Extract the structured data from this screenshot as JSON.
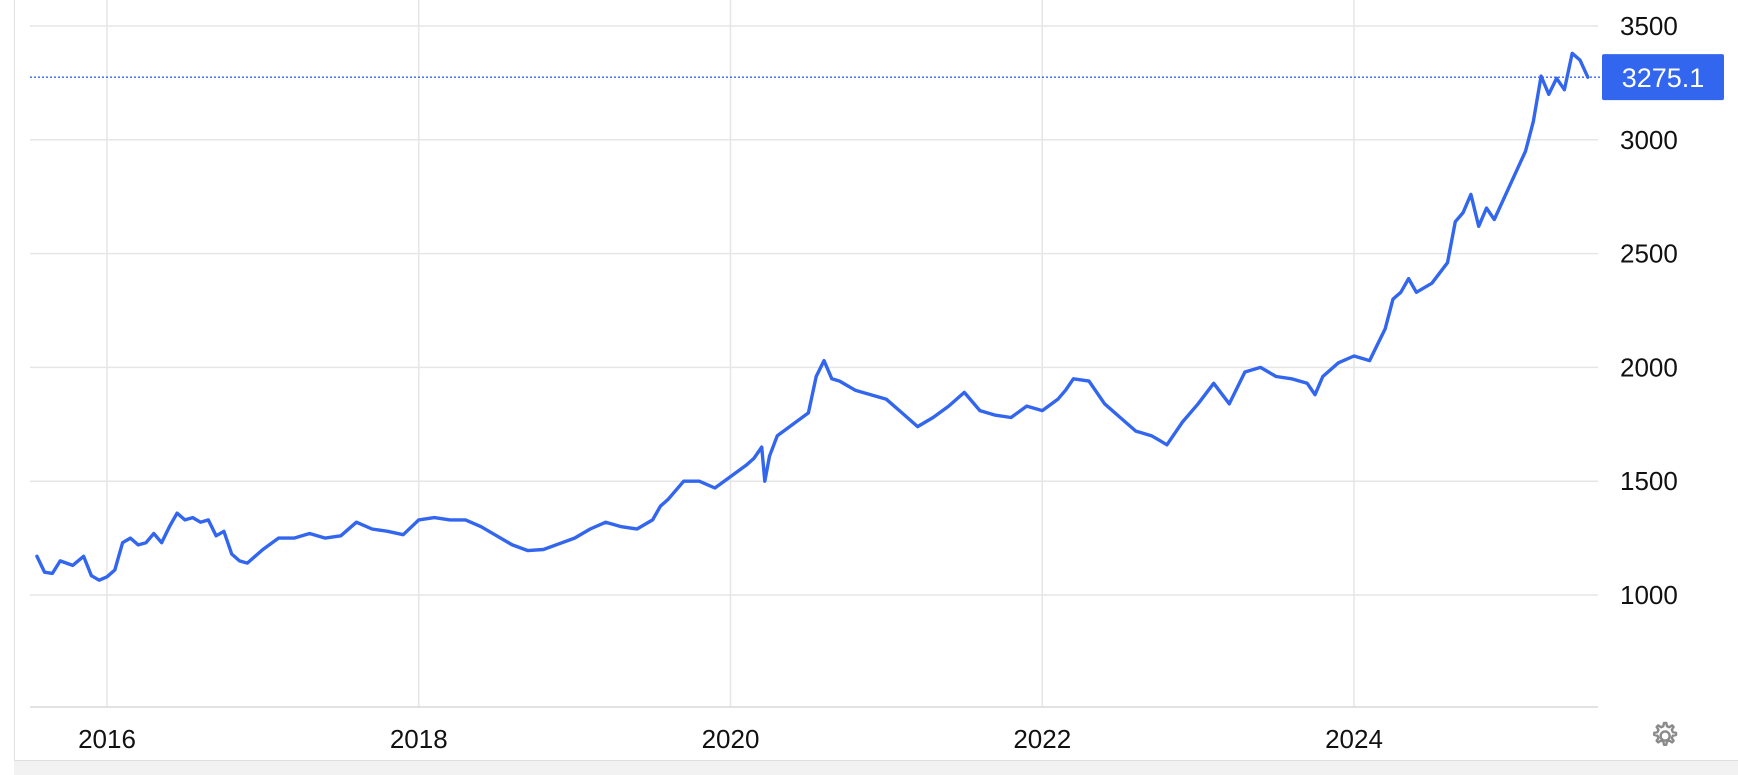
{
  "chart_data": {
    "type": "line",
    "title": "",
    "xlabel": "",
    "ylabel": "",
    "xlim": [
      2015.55,
      2025.6
    ],
    "ylim": [
      500,
      3600
    ],
    "grid": true,
    "x_ticks": [
      2016,
      2018,
      2020,
      2022,
      2024
    ],
    "x_tick_labels": [
      "2016",
      "2018",
      "2020",
      "2022",
      "2024"
    ],
    "y_ticks": [
      1000,
      1500,
      2000,
      2500,
      3000,
      3500
    ],
    "y_tick_labels": [
      "1000",
      "1500",
      "2000",
      "2500",
      "3000",
      "3500"
    ],
    "last_value": 3275.1,
    "last_value_label": "3275.1",
    "colors": {
      "line": "#3366ee",
      "label_bg": "#3366ee",
      "grid": "#e6e6e6"
    },
    "series": [
      {
        "x": [
          2015.55,
          2015.6,
          2015.65,
          2015.7,
          2015.78,
          2015.85,
          2015.9,
          2015.95,
          2016.0,
          2016.05,
          2016.1,
          2016.15,
          2016.2,
          2016.25,
          2016.3,
          2016.35,
          2016.4,
          2016.45,
          2016.5,
          2016.55,
          2016.6,
          2016.65,
          2016.7,
          2016.75,
          2016.8,
          2016.85,
          2016.9,
          2016.95,
          2017.0,
          2017.1,
          2017.2,
          2017.3,
          2017.4,
          2017.5,
          2017.6,
          2017.7,
          2017.8,
          2017.9,
          2018.0,
          2018.1,
          2018.2,
          2018.3,
          2018.4,
          2018.5,
          2018.6,
          2018.7,
          2018.8,
          2018.9,
          2019.0,
          2019.1,
          2019.2,
          2019.3,
          2019.4,
          2019.5,
          2019.55,
          2019.6,
          2019.7,
          2019.8,
          2019.9,
          2020.0,
          2020.1,
          2020.15,
          2020.2,
          2020.22,
          2020.25,
          2020.3,
          2020.4,
          2020.5,
          2020.55,
          2020.6,
          2020.65,
          2020.7,
          2020.8,
          2020.9,
          2021.0,
          2021.1,
          2021.2,
          2021.3,
          2021.4,
          2021.5,
          2021.6,
          2021.7,
          2021.8,
          2021.9,
          2022.0,
          2022.1,
          2022.15,
          2022.2,
          2022.3,
          2022.4,
          2022.5,
          2022.6,
          2022.7,
          2022.75,
          2022.8,
          2022.9,
          2023.0,
          2023.1,
          2023.2,
          2023.3,
          2023.4,
          2023.5,
          2023.6,
          2023.7,
          2023.75,
          2023.8,
          2023.9,
          2024.0,
          2024.1,
          2024.15,
          2024.2,
          2024.25,
          2024.3,
          2024.35,
          2024.4,
          2024.5,
          2024.6,
          2024.65,
          2024.7,
          2024.75,
          2024.8,
          2024.85,
          2024.9,
          2025.0,
          2025.1,
          2025.15,
          2025.2,
          2025.25,
          2025.3,
          2025.35,
          2025.4,
          2025.45,
          2025.5
        ],
        "y": [
          1170,
          1100,
          1095,
          1150,
          1130,
          1170,
          1085,
          1065,
          1080,
          1110,
          1230,
          1250,
          1220,
          1230,
          1270,
          1230,
          1300,
          1360,
          1330,
          1340,
          1320,
          1330,
          1260,
          1280,
          1180,
          1150,
          1140,
          1170,
          1200,
          1250,
          1250,
          1270,
          1250,
          1260,
          1320,
          1290,
          1280,
          1265,
          1330,
          1340,
          1330,
          1330,
          1300,
          1260,
          1220,
          1195,
          1200,
          1225,
          1250,
          1290,
          1320,
          1300,
          1290,
          1330,
          1390,
          1420,
          1500,
          1500,
          1470,
          1520,
          1570,
          1600,
          1650,
          1500,
          1610,
          1700,
          1750,
          1800,
          1960,
          2030,
          1950,
          1940,
          1900,
          1880,
          1860,
          1800,
          1740,
          1780,
          1830,
          1890,
          1810,
          1790,
          1780,
          1830,
          1810,
          1860,
          1900,
          1950,
          1940,
          1840,
          1780,
          1720,
          1700,
          1680,
          1660,
          1760,
          1840,
          1930,
          1840,
          1980,
          2000,
          1960,
          1950,
          1930,
          1880,
          1960,
          2020,
          2050,
          2030,
          2100,
          2170,
          2300,
          2330,
          2390,
          2330,
          2370,
          2460,
          2640,
          2680,
          2760,
          2620,
          2700,
          2650,
          2800,
          2950,
          3080,
          3280,
          3200,
          3270,
          3220,
          3380,
          3350,
          3275
        ]
      }
    ]
  }
}
